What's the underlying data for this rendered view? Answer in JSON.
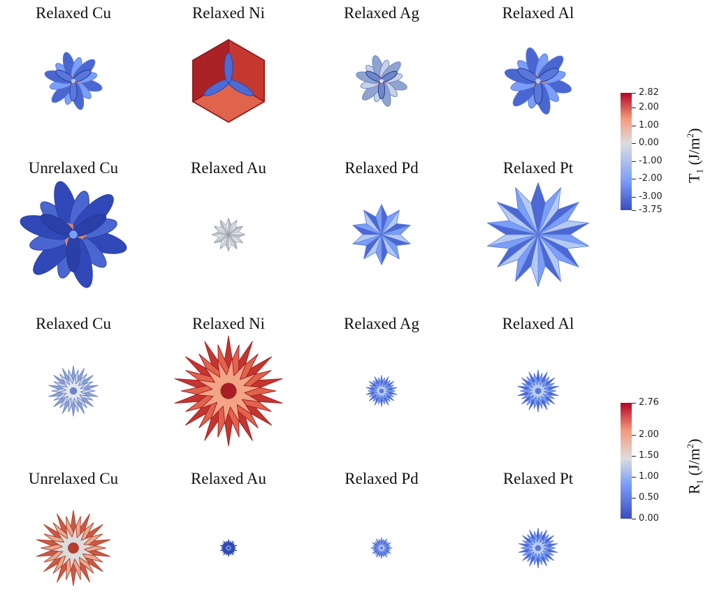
{
  "panels": [
    {
      "label": "Relaxed Cu",
      "kind": "petal",
      "palette": "blue",
      "scale": 0.62,
      "spikes": 6,
      "accent": "orange"
    },
    {
      "label": "Relaxed Ni",
      "kind": "cube",
      "palette": "red",
      "scale": 0.95,
      "spikes": 6,
      "accent": "blue"
    },
    {
      "label": "Relaxed Ag",
      "kind": "petal",
      "palette": "grey",
      "scale": 0.55,
      "spikes": 6,
      "accent": "orange"
    },
    {
      "label": "Relaxed Al",
      "kind": "petal",
      "palette": "blue",
      "scale": 0.72,
      "spikes": 6,
      "accent": "orange"
    },
    {
      "label": "Unrelaxed Cu",
      "kind": "petal",
      "palette": "deepblue",
      "scale": 1.15,
      "spikes": 6,
      "accent": "orange"
    },
    {
      "label": "Relaxed Au",
      "kind": "shard",
      "palette": "lightgrey",
      "scale": 0.3,
      "spikes": 12,
      "accent": "none"
    },
    {
      "label": "Relaxed Pd",
      "kind": "shard",
      "palette": "blue",
      "scale": 0.55,
      "spikes": 10,
      "accent": "none"
    },
    {
      "label": "Relaxed Pt",
      "kind": "shard",
      "palette": "blue",
      "scale": 0.95,
      "spikes": 14,
      "accent": "none"
    },
    {
      "label": "Relaxed Cu",
      "kind": "star",
      "palette": "grey",
      "scale": 0.48,
      "spikes": 14,
      "accent": "none"
    },
    {
      "label": "Relaxed Ni",
      "kind": "star",
      "palette": "red",
      "scale": 1.05,
      "spikes": 14,
      "accent": "grey"
    },
    {
      "label": "Relaxed Ag",
      "kind": "star",
      "palette": "blue",
      "scale": 0.3,
      "spikes": 14,
      "accent": "none"
    },
    {
      "label": "Relaxed Al",
      "kind": "star",
      "palette": "blue",
      "scale": 0.4,
      "spikes": 14,
      "accent": "none"
    },
    {
      "label": "Unrelaxed Cu",
      "kind": "star",
      "palette": "redgrey",
      "scale": 0.72,
      "spikes": 14,
      "accent": "none"
    },
    {
      "label": "Relaxed Au",
      "kind": "star",
      "palette": "deepblue",
      "scale": 0.16,
      "spikes": 10,
      "accent": "none"
    },
    {
      "label": "Relaxed Pd",
      "kind": "star",
      "palette": "blue",
      "scale": 0.2,
      "spikes": 12,
      "accent": "none"
    },
    {
      "label": "Relaxed Pt",
      "kind": "star",
      "palette": "blue",
      "scale": 0.38,
      "spikes": 14,
      "accent": "none"
    }
  ],
  "colorbars": [
    {
      "title_main": "T",
      "title_sub": "1",
      "title_unit_open": " (J/m",
      "title_unit_sup": "2",
      "title_unit_close": ")",
      "ticks": [
        "2.82",
        "2.00",
        "1.00",
        "0.00",
        "-1.00",
        "-2.00",
        "-3.00",
        "-3.75"
      ],
      "tick_values": [
        2.82,
        2.0,
        1.0,
        0.0,
        -1.0,
        -2.0,
        -3.0,
        -3.75
      ],
      "min": -3.75,
      "max": 2.82
    },
    {
      "title_main": "R",
      "title_sub": "1",
      "title_unit_open": " (J/m",
      "title_unit_sup": "2",
      "title_unit_close": ")",
      "ticks": [
        "2.76",
        "2.00",
        "1.50",
        "1.00",
        "0.50",
        "0.00"
      ],
      "tick_values": [
        2.76,
        2.0,
        1.5,
        1.0,
        0.5,
        0.0
      ],
      "min": 0.0,
      "max": 2.76
    }
  ],
  "colors": {
    "cool": "#3b4cc0",
    "neutral": "#dddddd",
    "warm": "#b40426"
  }
}
